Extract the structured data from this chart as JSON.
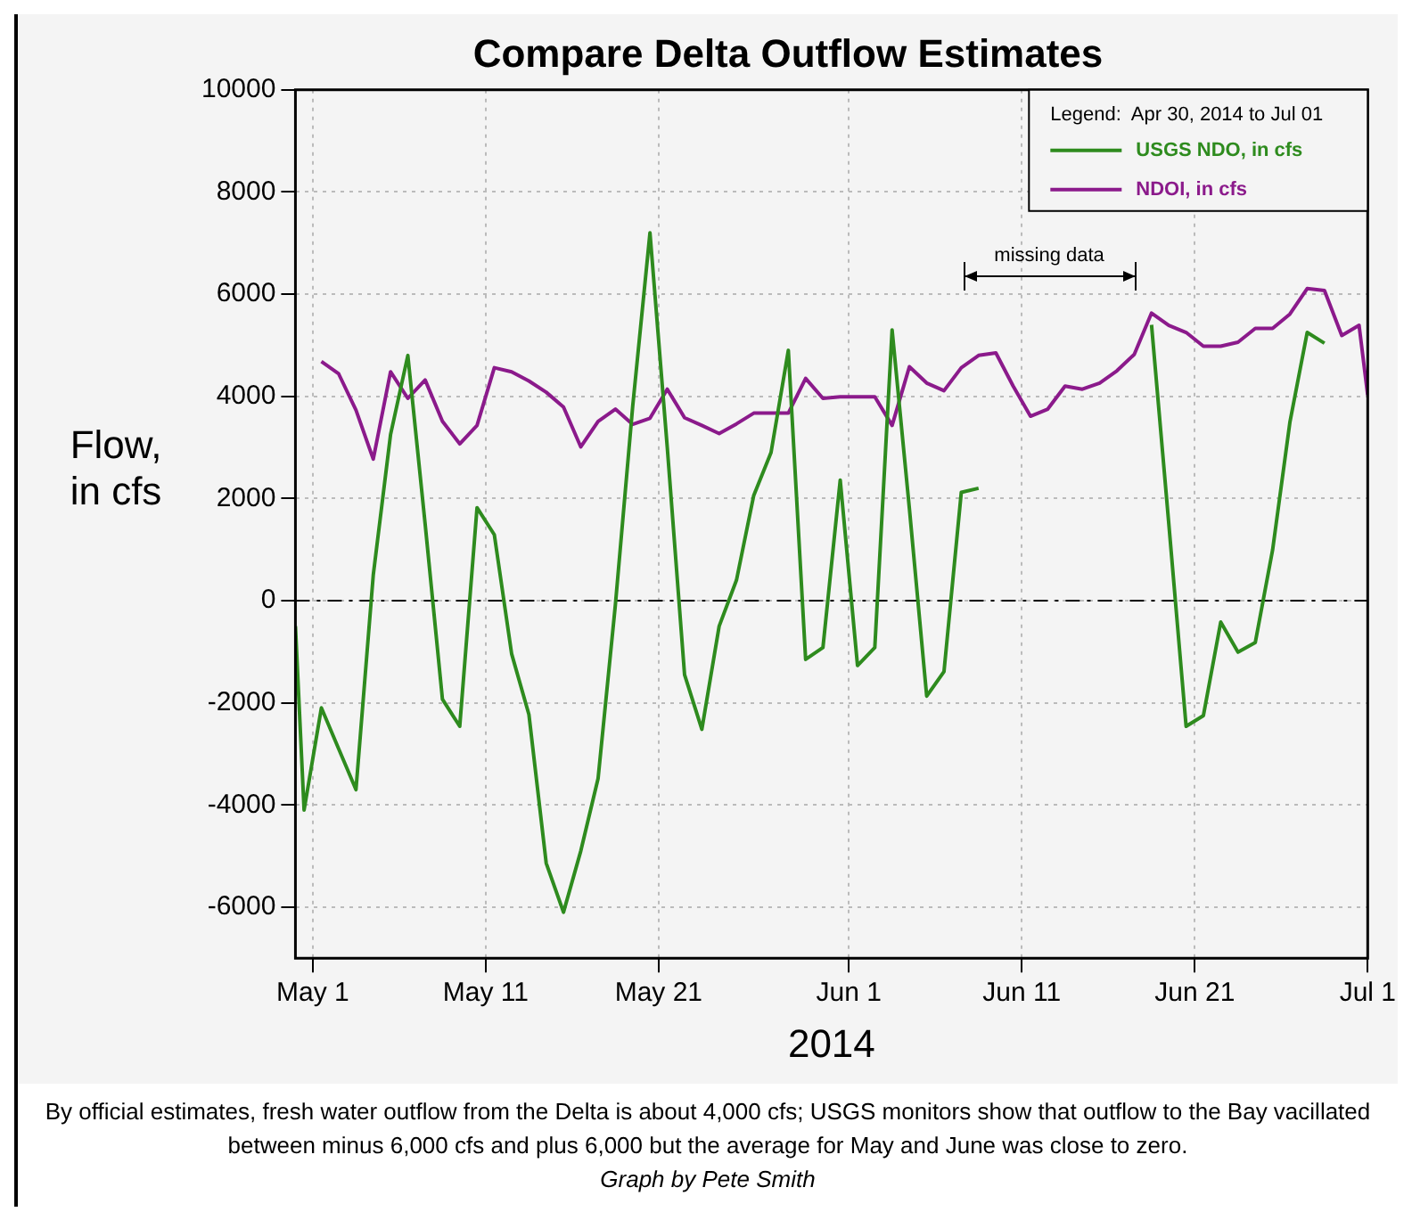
{
  "chart_data": {
    "type": "line",
    "title": "Compare Delta Outflow Estimates",
    "xlabel": "2014",
    "ylabel": "Flow,\nin cfs",
    "legend_title": "Legend:  Apr 30, 2014 to Jul 01",
    "legend": "top right",
    "grid": true,
    "marker": "none",
    "line_style": "solid",
    "xlim": [
      "2014-04-30",
      "2014-07-01"
    ],
    "xticks": [
      {
        "value": "2014-05-01",
        "label": "May 1"
      },
      {
        "value": "2014-05-11",
        "label": "May 11"
      },
      {
        "value": "2014-05-21",
        "label": "May 21"
      },
      {
        "value": "2014-06-01",
        "label": "Jun 1"
      },
      {
        "value": "2014-06-11",
        "label": "Jun 11"
      },
      {
        "value": "2014-06-21",
        "label": "Jun 21"
      },
      {
        "value": "2014-07-01",
        "label": "Jul 1"
      }
    ],
    "ylim": [
      -7000,
      10000
    ],
    "yticks": [
      -6000,
      -4000,
      -2000,
      0,
      2000,
      4000,
      6000,
      8000,
      10000
    ],
    "ref_lines": [
      {
        "axis": "y",
        "value": 0,
        "line_style": "dashed",
        "color": "#000000"
      }
    ],
    "series": [
      {
        "name": "USGS NDO, in cfs",
        "color": "#2e8b1e",
        "x": [
          "2014-04-30T00:00",
          "2014-04-30T12:00",
          "2014-05-01T12:00",
          "2014-05-02T12:00",
          "2014-05-03T12:00",
          "2014-05-04T12:00",
          "2014-05-05T12:00",
          "2014-05-06T12:00",
          "2014-05-07T12:00",
          "2014-05-08T12:00",
          "2014-05-09T12:00",
          "2014-05-10T12:00",
          "2014-05-11T12:00",
          "2014-05-12T12:00",
          "2014-05-13T12:00",
          "2014-05-14T12:00",
          "2014-05-15T12:00",
          "2014-05-16T12:00",
          "2014-05-17T12:00",
          "2014-05-18T12:00",
          "2014-05-19T12:00",
          "2014-05-20T12:00",
          "2014-05-21T12:00",
          "2014-05-22T12:00",
          "2014-05-23T12:00",
          "2014-05-24T12:00",
          "2014-05-25T12:00",
          "2014-05-26T12:00",
          "2014-05-27T12:00",
          "2014-05-28T12:00",
          "2014-05-29T12:00",
          "2014-05-30T12:00",
          "2014-05-31T12:00",
          "2014-06-01T12:00",
          "2014-06-02T12:00",
          "2014-06-03T12:00",
          "2014-06-04T12:00",
          "2014-06-05T12:00",
          "2014-06-06T12:00",
          "2014-06-07T12:00",
          "2014-06-08T12:00",
          "2014-06-13T12:00",
          "2014-06-18T12:00",
          "2014-06-19T12:00",
          "2014-06-20T12:00",
          "2014-06-21T12:00",
          "2014-06-22T12:00",
          "2014-06-23T12:00",
          "2014-06-24T12:00",
          "2014-06-25T12:00",
          "2014-06-26T12:00",
          "2014-06-27T12:00",
          "2014-06-28T12:00"
        ],
        "values": [
          -500,
          -4100,
          -2100,
          -2900,
          -3700,
          500,
          3250,
          4800,
          1500,
          -1930,
          -2460,
          1820,
          1290,
          -1040,
          -2230,
          -5140,
          -6100,
          -4900,
          -3480,
          -80,
          3800,
          7200,
          3000,
          -1450,
          -2520,
          -500,
          400,
          2060,
          2900,
          4900,
          -1150,
          -920,
          2360,
          -1270,
          -920,
          5300,
          1800,
          -1870,
          -1390,
          2120,
          2200,
          null,
          5400,
          1500,
          -2460,
          -2250,
          -420,
          -1010,
          -820,
          990,
          3490,
          5250,
          5040
        ]
      },
      {
        "name": "NDOI, in cfs",
        "color": "#8b1a8b",
        "x": [
          "2014-05-01T12:00",
          "2014-05-02T12:00",
          "2014-05-03T12:00",
          "2014-05-04T12:00",
          "2014-05-05T12:00",
          "2014-05-06T12:00",
          "2014-05-07T12:00",
          "2014-05-08T12:00",
          "2014-05-09T12:00",
          "2014-05-10T12:00",
          "2014-05-11T12:00",
          "2014-05-12T12:00",
          "2014-05-13T12:00",
          "2014-05-14T12:00",
          "2014-05-15T12:00",
          "2014-05-16T12:00",
          "2014-05-17T12:00",
          "2014-05-18T12:00",
          "2014-05-19T12:00",
          "2014-05-20T12:00",
          "2014-05-21T12:00",
          "2014-05-22T12:00",
          "2014-05-23T12:00",
          "2014-05-24T12:00",
          "2014-05-25T12:00",
          "2014-05-26T12:00",
          "2014-05-27T12:00",
          "2014-05-28T12:00",
          "2014-05-29T12:00",
          "2014-05-30T12:00",
          "2014-05-31T12:00",
          "2014-06-01T12:00",
          "2014-06-02T12:00",
          "2014-06-03T12:00",
          "2014-06-04T12:00",
          "2014-06-05T12:00",
          "2014-06-06T12:00",
          "2014-06-07T12:00",
          "2014-06-08T12:00",
          "2014-06-09T12:00",
          "2014-06-10T12:00",
          "2014-06-11T12:00",
          "2014-06-12T12:00",
          "2014-06-13T12:00",
          "2014-06-14T12:00",
          "2014-06-15T12:00",
          "2014-06-16T12:00",
          "2014-06-17T12:00",
          "2014-06-18T12:00",
          "2014-06-19T12:00",
          "2014-06-20T12:00",
          "2014-06-21T12:00",
          "2014-06-22T12:00",
          "2014-06-23T12:00",
          "2014-06-24T12:00",
          "2014-06-25T12:00",
          "2014-06-26T12:00",
          "2014-06-27T12:00",
          "2014-06-28T12:00",
          "2014-06-29T12:00",
          "2014-06-30T12:00",
          "2014-07-01T00:00"
        ],
        "values": [
          4680,
          4440,
          3730,
          2770,
          4480,
          3960,
          4320,
          3510,
          3070,
          3430,
          4560,
          4480,
          4300,
          4080,
          3790,
          3010,
          3510,
          3750,
          3450,
          3570,
          4140,
          3580,
          3430,
          3270,
          3460,
          3670,
          3670,
          3670,
          4350,
          3960,
          3990,
          3990,
          3990,
          3430,
          4580,
          4260,
          4110,
          4560,
          4800,
          4850,
          4200,
          3610,
          3750,
          4200,
          4140,
          4260,
          4500,
          4820,
          5630,
          5390,
          5250,
          4980,
          4980,
          5060,
          5330,
          5330,
          5610,
          6110,
          6070,
          5190,
          5390,
          4020
        ]
      }
    ],
    "annotations": [
      "missing data",
      "By official estimates, fresh water outflow from the Delta is about 4,000 cfs; USGS monitors show that outflow to the Bay vacillated between minus 6,000 cfs and plus 6,000 but the average for May and June was close to zero.",
      "Graph by Pete Smith"
    ]
  }
}
